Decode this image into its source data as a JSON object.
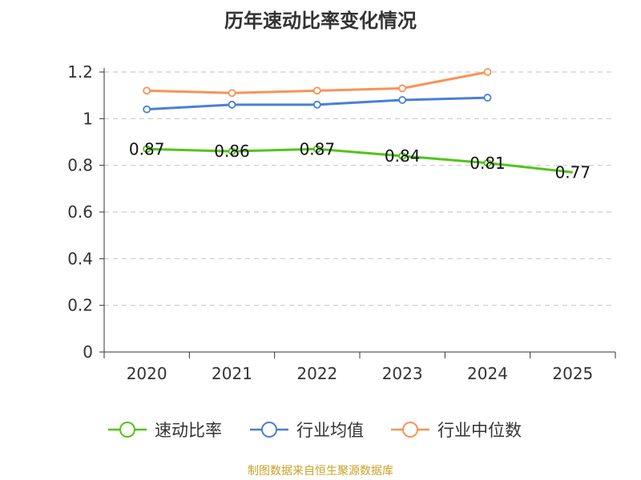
{
  "chart_data": {
    "type": "line",
    "title": "历年速动比率变化情况",
    "categories": [
      "2020",
      "2021",
      "2022",
      "2023",
      "2024",
      "2025"
    ],
    "ylim": [
      0,
      1.2
    ],
    "yticks": [
      "0",
      "0.2",
      "0.4",
      "0.6",
      "0.8",
      "1",
      "1.2"
    ],
    "grid": true,
    "legend_position": "bottom",
    "series": [
      {
        "name": "速动比率",
        "color": "#52c41a",
        "values": [
          0.87,
          0.86,
          0.87,
          0.84,
          0.81,
          0.77
        ],
        "labels": [
          "0.87",
          "0.86",
          "0.87",
          "0.84",
          "0.81",
          "0.77"
        ],
        "show_labels": true
      },
      {
        "name": "行业均值",
        "color": "#4a7fd8",
        "values": [
          1.04,
          1.06,
          1.06,
          1.08,
          1.09,
          null
        ],
        "show_labels": false
      },
      {
        "name": "行业中位数",
        "color": "#f89358",
        "values": [
          1.12,
          1.11,
          1.12,
          1.13,
          1.2,
          null
        ],
        "show_labels": false
      }
    ]
  },
  "footer": {
    "source": "制图数据来自恒生聚源数据库"
  }
}
